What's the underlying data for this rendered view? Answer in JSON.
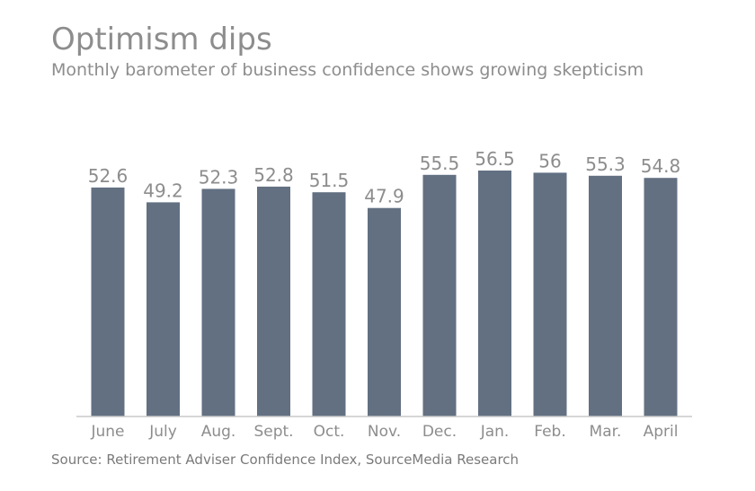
{
  "header": {
    "title": "Optimism dips",
    "subtitle": "Monthly barometer of business confidence shows growing skepticism"
  },
  "footer": {
    "source": "Source: Retirement Adviser Confidence Index, SourceMedia Research"
  },
  "colors": {
    "bar": "#627082",
    "text": "#8d8d8d",
    "axis": "#c8c8c8"
  },
  "chart_data": {
    "type": "bar",
    "title": "Optimism dips",
    "subtitle": "Monthly barometer of business confidence shows growing skepticism",
    "xlabel": "",
    "ylabel": "",
    "categories": [
      "June",
      "July",
      "Aug.",
      "Sept.",
      "Oct.",
      "Nov.",
      "Dec.",
      "Jan.",
      "Feb.",
      "Mar.",
      "April"
    ],
    "values": [
      52.6,
      49.2,
      52.3,
      52.8,
      51.5,
      47.9,
      55.5,
      56.5,
      56,
      55.3,
      54.8
    ],
    "value_labels": [
      "52.6",
      "49.2",
      "52.3",
      "52.8",
      "51.5",
      "47.9",
      "55.5",
      "56.5",
      "56",
      "55.3",
      "54.8"
    ],
    "ylim": [
      0,
      56.5
    ],
    "grid": false,
    "legend": "none"
  }
}
